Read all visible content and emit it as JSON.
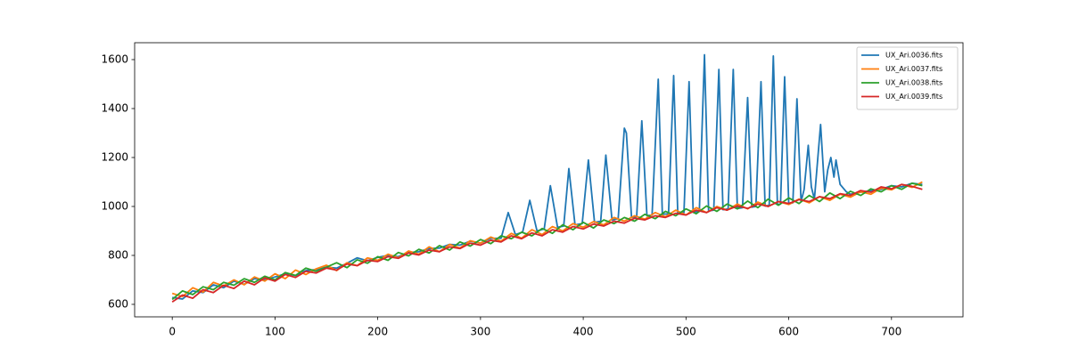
{
  "chart_data": {
    "type": "line",
    "xlim": [
      -36.6,
      769.6
    ],
    "ylim": [
      549,
      1669
    ],
    "xticks": [
      0,
      100,
      200,
      300,
      400,
      500,
      600,
      700
    ],
    "yticks": [
      600,
      800,
      1000,
      1200,
      1400,
      1600
    ],
    "legend": "upper right",
    "series": [
      {
        "name": "UX_Ari.0036.fits",
        "color": "#1f77b4",
        "x": [
          0,
          10,
          20,
          30,
          40,
          50,
          60,
          70,
          80,
          90,
          100,
          110,
          120,
          130,
          140,
          150,
          160,
          170,
          180,
          190,
          200,
          210,
          220,
          230,
          240,
          250,
          260,
          270,
          280,
          290,
          300,
          310,
          320,
          327,
          334,
          341,
          348,
          355,
          362,
          368,
          375,
          381,
          386,
          392,
          399,
          405,
          411,
          417,
          422,
          428,
          434,
          440,
          442,
          447,
          452,
          457,
          462,
          467,
          473,
          477,
          483,
          488,
          492,
          498,
          503,
          507,
          513,
          518,
          522,
          527,
          532,
          536,
          541,
          546,
          550,
          555,
          560,
          564,
          568,
          573,
          577,
          581,
          585,
          589,
          592,
          596,
          600,
          604,
          608,
          612,
          615,
          619,
          622,
          625,
          631,
          635,
          638,
          641,
          644,
          646,
          650,
          656,
          660,
          670,
          680,
          690,
          700,
          710,
          720,
          730
        ],
        "values": [
          628,
          622,
          655,
          648,
          680,
          668,
          695,
          682,
          705,
          700,
          712,
          725,
          718,
          738,
          742,
          752,
          748,
          768,
          790,
          778,
          792,
          800,
          795,
          812,
          815,
          828,
          830,
          845,
          842,
          858,
          850,
          870,
          870,
          975,
          885,
          895,
          1025,
          900,
          908,
          1085,
          915,
          920,
          1155,
          925,
          930,
          1190,
          935,
          940,
          1210,
          945,
          950,
          1320,
          1300,
          955,
          958,
          1350,
          962,
          965,
          1520,
          968,
          970,
          1535,
          972,
          975,
          1510,
          977,
          980,
          1620,
          982,
          985,
          1560,
          987,
          990,
          1560,
          992,
          995,
          1445,
          997,
          1000,
          1510,
          1002,
          1005,
          1615,
          1007,
          1010,
          1530,
          1012,
          1015,
          1440,
          1020,
          1070,
          1250,
          1080,
          1030,
          1335,
          1060,
          1150,
          1200,
          1120,
          1190,
          1090,
          1060,
          1050,
          1058,
          1065,
          1070,
          1085,
          1080,
          1095,
          1090
        ]
      },
      {
        "name": "UX_Ari.0037.fits",
        "color": "#ff7f0e",
        "x": [
          0,
          10,
          20,
          30,
          40,
          50,
          60,
          70,
          80,
          90,
          100,
          110,
          120,
          130,
          140,
          150,
          160,
          170,
          180,
          190,
          200,
          210,
          220,
          230,
          240,
          250,
          260,
          270,
          280,
          290,
          300,
          310,
          320,
          330,
          340,
          350,
          360,
          370,
          380,
          390,
          400,
          410,
          420,
          430,
          440,
          450,
          460,
          470,
          480,
          490,
          500,
          510,
          520,
          530,
          540,
          550,
          560,
          570,
          580,
          590,
          600,
          610,
          620,
          630,
          640,
          650,
          660,
          670,
          680,
          690,
          700,
          710,
          720,
          730
        ],
        "values": [
          645,
          632,
          668,
          650,
          690,
          675,
          700,
          680,
          712,
          695,
          725,
          705,
          740,
          722,
          745,
          760,
          738,
          770,
          758,
          790,
          780,
          805,
          790,
          818,
          805,
          835,
          815,
          845,
          830,
          860,
          850,
          875,
          858,
          890,
          870,
          905,
          885,
          918,
          900,
          930,
          915,
          938,
          925,
          955,
          940,
          962,
          948,
          975,
          958,
          985,
          965,
          995,
          975,
          1000,
          985,
          1010,
          990,
          1018,
          1000,
          1020,
          1008,
          1030,
          1015,
          1040,
          1025,
          1050,
          1038,
          1060,
          1050,
          1075,
          1068,
          1090,
          1078,
          1100
        ]
      },
      {
        "name": "UX_Ari.0038.fits",
        "color": "#2ca02c",
        "x": [
          0,
          10,
          20,
          30,
          40,
          50,
          60,
          70,
          80,
          90,
          100,
          110,
          120,
          130,
          140,
          150,
          160,
          170,
          180,
          190,
          200,
          210,
          220,
          230,
          240,
          250,
          260,
          270,
          280,
          290,
          300,
          310,
          320,
          330,
          340,
          350,
          360,
          370,
          380,
          390,
          400,
          410,
          420,
          430,
          440,
          450,
          460,
          470,
          480,
          490,
          500,
          510,
          520,
          530,
          540,
          550,
          560,
          570,
          580,
          590,
          600,
          610,
          620,
          630,
          640,
          650,
          660,
          670,
          680,
          690,
          700,
          710,
          720,
          730
        ],
        "values": [
          620,
          655,
          640,
          672,
          660,
          690,
          678,
          705,
          690,
          715,
          700,
          730,
          718,
          748,
          735,
          752,
          770,
          750,
          782,
          768,
          795,
          780,
          812,
          798,
          825,
          810,
          840,
          822,
          855,
          838,
          865,
          848,
          880,
          868,
          895,
          880,
          910,
          890,
          925,
          905,
          935,
          912,
          945,
          930,
          955,
          940,
          968,
          950,
          980,
          962,
          990,
          970,
          1002,
          980,
          1010,
          990,
          1022,
          995,
          1030,
          1005,
          1035,
          1012,
          1045,
          1020,
          1055,
          1032,
          1062,
          1045,
          1072,
          1060,
          1085,
          1070,
          1095,
          1085
        ]
      },
      {
        "name": "UX_Ari.0039.fits",
        "color": "#d62728",
        "x": [
          0,
          10,
          20,
          30,
          40,
          50,
          60,
          70,
          80,
          90,
          100,
          110,
          120,
          130,
          140,
          150,
          160,
          170,
          180,
          190,
          200,
          210,
          220,
          230,
          240,
          250,
          260,
          270,
          280,
          290,
          300,
          310,
          320,
          330,
          340,
          350,
          360,
          370,
          380,
          390,
          400,
          410,
          420,
          430,
          440,
          450,
          460,
          470,
          480,
          490,
          500,
          510,
          520,
          530,
          540,
          550,
          560,
          570,
          580,
          590,
          600,
          610,
          620,
          630,
          640,
          650,
          660,
          670,
          680,
          690,
          700,
          710,
          720,
          730
        ],
        "values": [
          610,
          638,
          625,
          660,
          648,
          678,
          665,
          695,
          680,
          708,
          695,
          722,
          710,
          735,
          728,
          748,
          740,
          765,
          758,
          780,
          775,
          795,
          788,
          810,
          802,
          822,
          815,
          835,
          828,
          850,
          842,
          862,
          855,
          880,
          868,
          892,
          880,
          905,
          895,
          918,
          908,
          928,
          920,
          940,
          932,
          952,
          945,
          962,
          955,
          972,
          965,
          985,
          975,
          995,
          985,
          1002,
          992,
          1010,
          1000,
          1020,
          1012,
          1028,
          1020,
          1040,
          1032,
          1052,
          1045,
          1065,
          1058,
          1080,
          1072,
          1090,
          1082,
          1070
        ]
      }
    ]
  }
}
